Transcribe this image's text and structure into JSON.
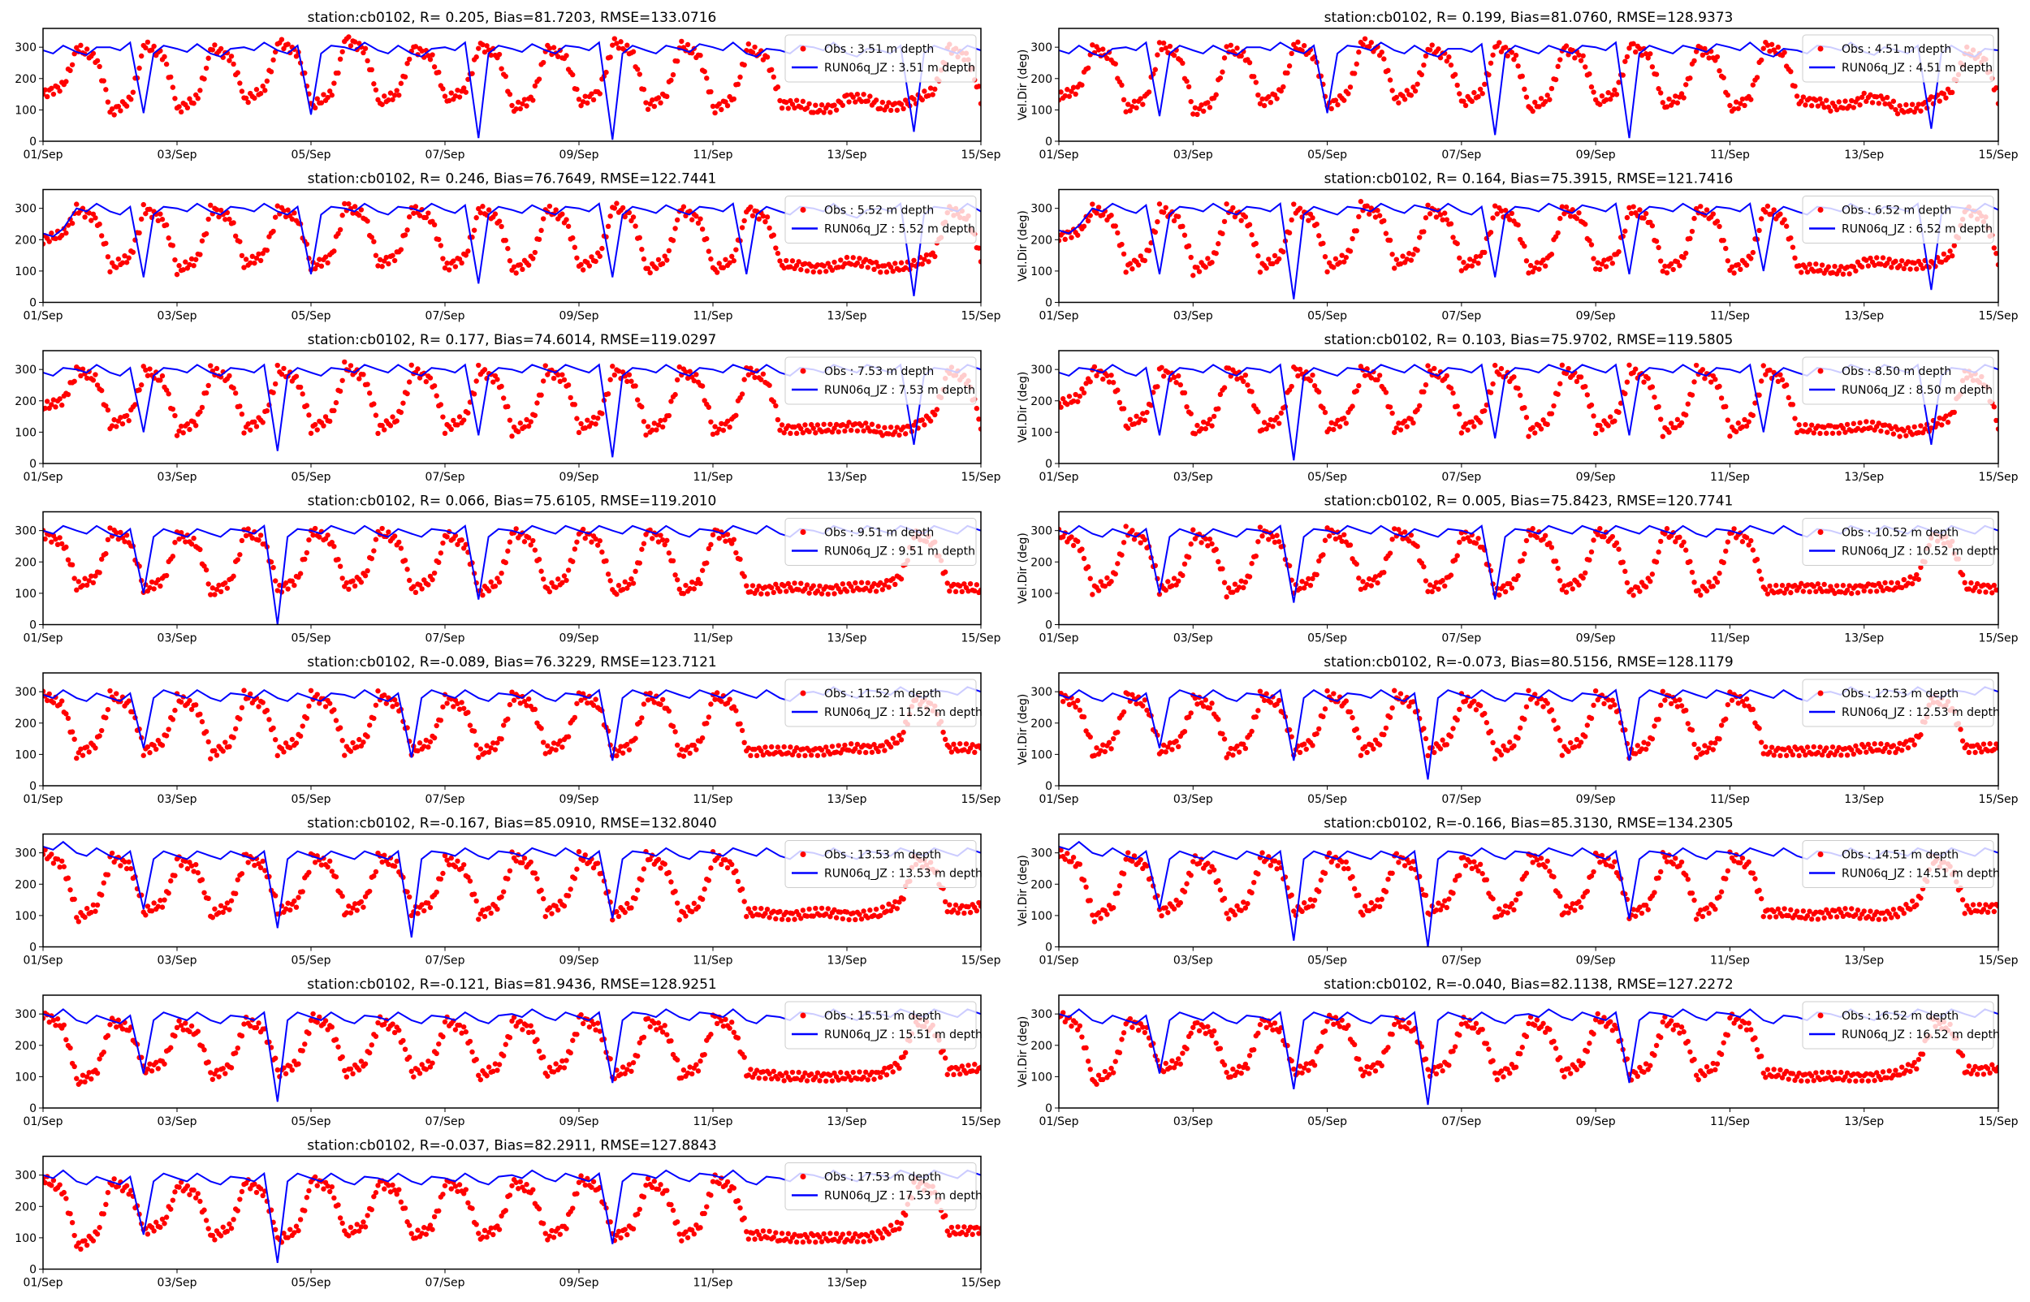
{
  "colors": {
    "obs": "#ff0000",
    "model": "#0000ff",
    "axis": "#000000"
  },
  "chart_data": {
    "type": "scatter+line",
    "layout": "grid 8 rows x 2 columns (15 panels)",
    "x_range": [
      "01/Sep",
      "15/Sep"
    ],
    "x_ticks": [
      "01/Sep",
      "03/Sep",
      "05/Sep",
      "07/Sep",
      "09/Sep",
      "11/Sep",
      "13/Sep",
      "15/Sep"
    ],
    "x_sampling": "12-hourly approximate values from 01/Sep 00:00 to 15/Sep 00:00",
    "y_range": [
      0,
      360
    ],
    "y_ticks": [
      "0",
      "100",
      "200",
      "300"
    ],
    "grid": false,
    "legend_position": "top-right",
    "panels": [
      {
        "col": 0,
        "row": 0,
        "title": "station:cb0102, R= 0.205, Bias=81.7203, RMSE=133.0716",
        "ylabel": "",
        "legend": [
          "Obs : 3.51 m depth",
          "RUN06q_JZ : 3.51 m depth"
        ],
        "obs": [
          150,
          300,
          90,
          310,
          100,
          300,
          130,
          320,
          110,
          330,
          120,
          300,
          130,
          310,
          100,
          300,
          120,
          320,
          110,
          310,
          100,
          300,
          120,
          100,
          140,
          110,
          130,
          300,
          120
        ],
        "model": [
          290,
          285,
          300,
          90,
          295,
          280,
          300,
          290,
          85,
          300,
          290,
          280,
          300,
          10,
          295,
          290,
          300,
          5,
          290,
          295,
          300,
          280,
          290,
          300,
          280,
          290,
          30,
          290,
          290
        ]
      },
      {
        "col": 1,
        "row": 0,
        "title": "station:cb0102, R= 0.199, Bias=81.0760, RMSE=128.9373",
        "ylabel": "Vel.Dir (deg)",
        "legend": [
          "Obs : 4.51 m depth",
          "RUN06q_JZ : 4.51 m depth"
        ],
        "obs": [
          140,
          300,
          100,
          310,
          90,
          300,
          120,
          310,
          110,
          320,
          130,
          300,
          120,
          310,
          100,
          300,
          120,
          310,
          110,
          300,
          100,
          310,
          130,
          110,
          140,
          100,
          130,
          290,
          120
        ],
        "model": [
          290,
          280,
          300,
          80,
          290,
          285,
          300,
          290,
          90,
          300,
          290,
          280,
          295,
          20,
          290,
          290,
          300,
          10,
          290,
          295,
          300,
          280,
          290,
          300,
          285,
          290,
          40,
          280,
          290
        ]
      },
      {
        "col": 0,
        "row": 1,
        "title": "station:cb0102, R= 0.246, Bias=76.7649, RMSE=122.7441",
        "ylabel": "",
        "legend": [
          "Obs : 5.52 m depth",
          "RUN06q_JZ : 5.52 m depth"
        ],
        "obs": [
          200,
          300,
          110,
          300,
          100,
          300,
          120,
          300,
          110,
          310,
          120,
          300,
          110,
          300,
          100,
          300,
          110,
          310,
          100,
          300,
          100,
          300,
          120,
          110,
          130,
          110,
          120,
          300,
          130
        ],
        "model": [
          220,
          300,
          290,
          80,
          300,
          290,
          300,
          290,
          90,
          300,
          290,
          300,
          295,
          60,
          295,
          290,
          300,
          80,
          295,
          290,
          300,
          90,
          290,
          300,
          280,
          300,
          20,
          300,
          290
        ]
      },
      {
        "col": 1,
        "row": 1,
        "title": "station:cb0102, R= 0.164, Bias=75.3915, RMSE=121.7416",
        "ylabel": "Vel.Dir (deg)",
        "legend": [
          "Obs : 6.52 m depth",
          "RUN06q_JZ : 6.52 m depth"
        ],
        "obs": [
          210,
          300,
          110,
          300,
          100,
          300,
          110,
          300,
          110,
          310,
          120,
          300,
          110,
          300,
          100,
          300,
          110,
          300,
          100,
          300,
          100,
          300,
          110,
          100,
          130,
          120,
          120,
          300,
          120
        ],
        "model": [
          230,
          300,
          295,
          90,
          300,
          290,
          300,
          10,
          290,
          300,
          295,
          300,
          290,
          80,
          300,
          295,
          300,
          90,
          300,
          290,
          300,
          100,
          290,
          300,
          290,
          300,
          40,
          300,
          295
        ]
      },
      {
        "col": 0,
        "row": 2,
        "title": "station:cb0102, R= 0.177, Bias=74.6014, RMSE=119.0297",
        "ylabel": "",
        "legend": [
          "Obs : 7.53 m depth",
          "RUN06q_JZ : 7.53 m depth"
        ],
        "obs": [
          180,
          300,
          120,
          300,
          100,
          300,
          110,
          300,
          110,
          310,
          110,
          300,
          110,
          300,
          100,
          300,
          110,
          300,
          100,
          300,
          100,
          300,
          110,
          110,
          120,
          100,
          120,
          300,
          110
        ],
        "model": [
          290,
          300,
          290,
          100,
          300,
          290,
          300,
          40,
          290,
          300,
          300,
          290,
          300,
          90,
          300,
          300,
          300,
          20,
          300,
          290,
          300,
          300,
          290,
          300,
          300,
          300,
          60,
          300,
          300
        ]
      },
      {
        "col": 1,
        "row": 2,
        "title": "station:cb0102, R= 0.103, Bias=75.9702, RMSE=119.5805",
        "ylabel": "Vel.Dir (deg)",
        "legend": [
          "Obs : 8.50 m depth",
          "RUN06q_JZ : 8.50 m depth"
        ],
        "obs": [
          190,
          300,
          120,
          300,
          100,
          300,
          110,
          300,
          110,
          300,
          110,
          300,
          110,
          300,
          100,
          300,
          110,
          300,
          100,
          300,
          100,
          300,
          110,
          110,
          120,
          100,
          120,
          290,
          110
        ],
        "model": [
          290,
          300,
          290,
          90,
          300,
          290,
          300,
          10,
          290,
          300,
          300,
          290,
          300,
          80,
          300,
          300,
          300,
          90,
          300,
          290,
          300,
          100,
          290,
          300,
          300,
          300,
          60,
          300,
          300
        ]
      },
      {
        "col": 0,
        "row": 3,
        "title": "station:cb0102, R= 0.066, Bias=75.6105, RMSE=119.2010",
        "ylabel": "",
        "legend": [
          "Obs : 9.51 m depth",
          "RUN06q_JZ : 9.51 m depth"
        ],
        "obs": [
          290,
          120,
          300,
          110,
          290,
          100,
          300,
          110,
          300,
          120,
          300,
          110,
          290,
          100,
          300,
          110,
          300,
          100,
          300,
          100,
          300,
          110,
          120,
          110,
          120,
          120,
          290,
          120,
          110
        ],
        "model": [
          300,
          300,
          290,
          100,
          290,
          290,
          300,
          0,
          300,
          300,
          290,
          290,
          300,
          80,
          300,
          300,
          300,
          300,
          300,
          290,
          300,
          300,
          290,
          300,
          300,
          300,
          300,
          300,
          300
        ]
      },
      {
        "col": 1,
        "row": 3,
        "title": "station:cb0102, R= 0.005, Bias=75.8423, RMSE=120.7741",
        "ylabel": "Vel.Dir (deg)",
        "legend": [
          "Obs : 10.52 m depth",
          "RUN06q_JZ : 10.52 m depth"
        ],
        "obs": [
          290,
          110,
          300,
          110,
          290,
          100,
          300,
          110,
          300,
          120,
          300,
          110,
          290,
          100,
          300,
          110,
          300,
          100,
          300,
          100,
          300,
          110,
          120,
          110,
          120,
          120,
          290,
          120,
          110
        ],
        "model": [
          300,
          290,
          290,
          100,
          290,
          290,
          300,
          70,
          300,
          300,
          290,
          290,
          300,
          80,
          300,
          300,
          300,
          300,
          300,
          290,
          300,
          300,
          290,
          300,
          300,
          300,
          300,
          300,
          300
        ]
      },
      {
        "col": 0,
        "row": 4,
        "title": "station:cb0102, R=-0.089, Bias=76.3229, RMSE=123.7121",
        "ylabel": "",
        "legend": [
          "Obs : 11.52 m depth",
          "RUN06q_JZ : 11.52 m depth"
        ],
        "obs": [
          290,
          100,
          290,
          110,
          280,
          100,
          290,
          110,
          290,
          110,
          290,
          110,
          280,
          100,
          290,
          110,
          290,
          100,
          290,
          100,
          290,
          110,
          110,
          110,
          120,
          120,
          280,
          120,
          120
        ],
        "model": [
          290,
          280,
          280,
          120,
          290,
          280,
          290,
          280,
          280,
          290,
          280,
          90,
          290,
          280,
          290,
          280,
          290,
          80,
          290,
          290,
          290,
          290,
          280,
          300,
          290,
          300,
          290,
          300,
          300
        ]
      },
      {
        "col": 1,
        "row": 4,
        "title": "station:cb0102, R=-0.073, Bias=80.5156, RMSE=128.1179",
        "ylabel": "Vel.Dir (deg)",
        "legend": [
          "Obs : 12.53 m depth",
          "RUN06q_JZ : 12.53 m depth"
        ],
        "obs": [
          290,
          100,
          290,
          110,
          280,
          100,
          290,
          110,
          290,
          110,
          290,
          110,
          280,
          100,
          290,
          110,
          290,
          100,
          290,
          100,
          290,
          110,
          110,
          110,
          120,
          120,
          280,
          120,
          120
        ],
        "model": [
          290,
          280,
          280,
          120,
          290,
          280,
          290,
          80,
          280,
          290,
          280,
          20,
          290,
          280,
          290,
          280,
          290,
          80,
          290,
          290,
          290,
          290,
          280,
          300,
          290,
          300,
          290,
          300,
          300
        ]
      },
      {
        "col": 0,
        "row": 5,
        "title": "station:cb0102, R=-0.167, Bias=85.0910, RMSE=132.8040",
        "ylabel": "",
        "legend": [
          "Obs : 13.53 m depth",
          "RUN06q_JZ : 13.53 m depth"
        ],
        "obs": [
          300,
          90,
          290,
          110,
          280,
          100,
          290,
          110,
          290,
          110,
          290,
          110,
          280,
          100,
          290,
          110,
          290,
          100,
          290,
          100,
          290,
          110,
          100,
          110,
          100,
          110,
          280,
          120,
          130
        ],
        "model": [
          320,
          300,
          290,
          120,
          290,
          290,
          290,
          60,
          290,
          290,
          290,
          30,
          300,
          290,
          300,
          300,
          290,
          90,
          300,
          290,
          300,
          300,
          290,
          300,
          290,
          300,
          300,
          300,
          300
        ]
      },
      {
        "col": 1,
        "row": 5,
        "title": "station:cb0102, R=-0.166, Bias=85.3130, RMSE=134.2305",
        "ylabel": "Vel.Dir (deg)",
        "legend": [
          "Obs : 14.51 m depth",
          "RUN06q_JZ : 14.51 m depth"
        ],
        "obs": [
          300,
          90,
          290,
          110,
          280,
          100,
          290,
          110,
          290,
          110,
          290,
          110,
          280,
          100,
          290,
          110,
          290,
          100,
          290,
          100,
          290,
          110,
          100,
          110,
          100,
          110,
          280,
          120,
          130
        ],
        "model": [
          320,
          300,
          290,
          120,
          290,
          290,
          290,
          20,
          290,
          290,
          290,
          0,
          300,
          290,
          300,
          300,
          290,
          90,
          300,
          290,
          300,
          300,
          290,
          300,
          290,
          300,
          300,
          300,
          300
        ]
      },
      {
        "col": 0,
        "row": 6,
        "title": "station:cb0102, R=-0.121, Bias=81.9436, RMSE=128.9251",
        "ylabel": "",
        "legend": [
          "Obs : 15.51 m depth",
          "RUN06q_JZ : 15.51 m depth"
        ],
        "obs": [
          300,
          80,
          280,
          120,
          270,
          100,
          280,
          110,
          290,
          110,
          280,
          110,
          280,
          100,
          280,
          110,
          290,
          100,
          280,
          100,
          290,
          110,
          100,
          100,
          100,
          110,
          280,
          120,
          130
        ],
        "model": [
          300,
          280,
          280,
          110,
          290,
          280,
          290,
          20,
          290,
          280,
          290,
          280,
          290,
          280,
          300,
          290,
          290,
          80,
          300,
          290,
          300,
          280,
          290,
          300,
          290,
          300,
          300,
          300,
          300
        ]
      },
      {
        "col": 1,
        "row": 6,
        "title": "station:cb0102, R=-0.040, Bias=82.1138, RMSE=127.2272",
        "ylabel": "Vel.Dir (deg)",
        "legend": [
          "Obs : 16.52 m depth",
          "RUN06q_JZ : 16.52 m depth"
        ],
        "obs": [
          300,
          80,
          280,
          120,
          270,
          100,
          280,
          110,
          290,
          110,
          280,
          110,
          280,
          100,
          280,
          110,
          290,
          100,
          280,
          100,
          290,
          110,
          100,
          100,
          100,
          110,
          280,
          120,
          130
        ],
        "model": [
          300,
          280,
          280,
          110,
          290,
          280,
          290,
          60,
          290,
          280,
          290,
          10,
          290,
          280,
          300,
          290,
          290,
          80,
          300,
          290,
          300,
          280,
          290,
          300,
          290,
          300,
          300,
          300,
          300
        ]
      },
      {
        "col": 0,
        "row": 7,
        "title": "station:cb0102, R=-0.037, Bias=82.2911, RMSE=127.8843",
        "ylabel": "",
        "legend": [
          "Obs : 17.53 m depth",
          "RUN06q_JZ : 17.53 m depth"
        ],
        "obs": [
          290,
          70,
          280,
          120,
          270,
          100,
          280,
          90,
          290,
          110,
          280,
          100,
          280,
          100,
          280,
          100,
          290,
          100,
          280,
          100,
          290,
          110,
          100,
          100,
          100,
          110,
          280,
          120,
          130
        ],
        "model": [
          300,
          280,
          280,
          110,
          290,
          280,
          290,
          20,
          290,
          280,
          290,
          280,
          290,
          280,
          300,
          290,
          290,
          80,
          300,
          290,
          300,
          280,
          290,
          300,
          290,
          300,
          300,
          300,
          300
        ]
      }
    ]
  }
}
